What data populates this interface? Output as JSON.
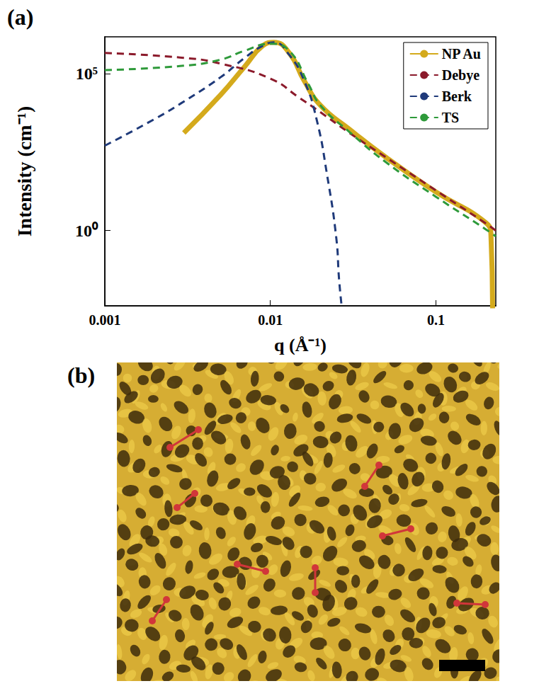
{
  "chart_data": {
    "type": "line",
    "panel": "(a)",
    "x_label": "q (Å⁻¹)",
    "y_label": "Intensity (cm⁻¹)",
    "log": true,
    "legend": "upper right",
    "xlim": [
      0.001,
      0.23
    ],
    "ylim": [
      0.004,
      1500000
    ],
    "xticks": [
      0.001,
      0.01,
      0.1
    ],
    "yticks": [
      {
        "value": 1,
        "label": "10⁰"
      },
      {
        "value": 100000,
        "label": "10⁵"
      }
    ],
    "series": [
      {
        "name": "NP Au",
        "color": "#d4aa1c",
        "line_style": "solid",
        "marker": "none",
        "x": [
          0.003,
          0.005,
          0.007,
          0.009,
          0.0105,
          0.013,
          0.016,
          0.02,
          0.03,
          0.05,
          0.1,
          0.2,
          0.215,
          0.22
        ],
        "values": [
          1300,
          21000,
          170000,
          780000,
          1000000,
          460000,
          60000,
          10000,
          1700,
          215,
          17,
          1.8,
          0.7,
          0.003
        ]
      },
      {
        "name": "Debye",
        "color": "#8b1a2b",
        "line_style": "dashed",
        "marker": "none",
        "x": [
          0.001,
          0.003,
          0.005,
          0.01,
          0.015,
          0.02,
          0.03,
          0.05,
          0.1,
          0.2,
          0.23
        ],
        "values": [
          460000,
          320000,
          210000,
          70000,
          17000,
          6000,
          1300,
          215,
          19,
          1.7,
          1
        ]
      },
      {
        "name": "Berk",
        "color": "#1f3a7a",
        "line_style": "dashed",
        "marker": "none",
        "x": [
          0.001,
          0.002,
          0.003,
          0.005,
          0.007,
          0.009,
          0.0105,
          0.013,
          0.016,
          0.019,
          0.022,
          0.025,
          0.026,
          0.027
        ],
        "values": [
          510,
          3600,
          13000,
          77000,
          320000,
          780000,
          1000000,
          400000,
          60000,
          3600,
          60,
          0.6,
          0.028,
          0.0036
        ]
      },
      {
        "name": "TS",
        "color": "#2e9a3a",
        "line_style": "dashed",
        "marker": "none",
        "x": [
          0.001,
          0.003,
          0.005,
          0.007,
          0.01,
          0.013,
          0.017,
          0.02,
          0.03,
          0.05,
          0.1,
          0.2,
          0.23
        ],
        "values": [
          130000,
          180000,
          280000,
          540000,
          900000,
          540000,
          46000,
          10000,
          1400,
          150,
          12,
          1.1,
          0.66
        ]
      }
    ]
  },
  "image_panel": {
    "panel": "(b)"
  }
}
